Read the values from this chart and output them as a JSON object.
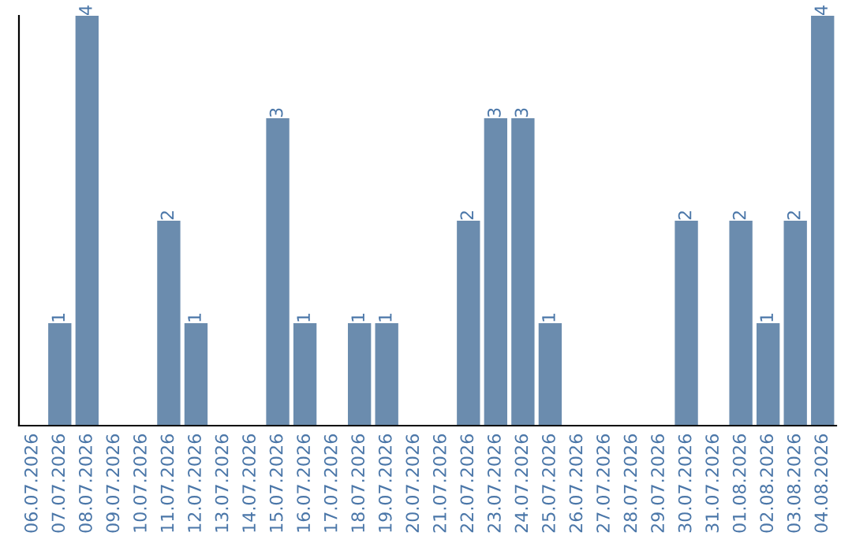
{
  "chart_data": {
    "type": "bar",
    "categories": [
      "06.07.2026",
      "07.07.2026",
      "08.07.2026",
      "09.07.2026",
      "10.07.2026",
      "11.07.2026",
      "12.07.2026",
      "13.07.2026",
      "14.07.2026",
      "15.07.2026",
      "16.07.2026",
      "17.07.2026",
      "18.07.2026",
      "19.07.2026",
      "20.07.2026",
      "21.07.2026",
      "22.07.2026",
      "23.07.2026",
      "24.07.2026",
      "25.07.2026",
      "26.07.2026",
      "27.07.2026",
      "28.07.2026",
      "29.07.2026",
      "30.07.2026",
      "31.07.2026",
      "01.08.2026",
      "02.08.2026",
      "03.08.2026",
      "04.08.2026"
    ],
    "values": [
      0,
      1,
      4,
      0,
      0,
      2,
      1,
      0,
      0,
      3,
      1,
      0,
      1,
      1,
      0,
      0,
      2,
      3,
      3,
      1,
      0,
      0,
      0,
      0,
      2,
      0,
      2,
      1,
      2,
      4
    ],
    "value_labels": [
      null,
      "1",
      "4",
      null,
      null,
      "2",
      "1",
      null,
      null,
      "3",
      "1",
      null,
      "1",
      "1",
      null,
      null,
      "2",
      "3",
      "3",
      "1",
      null,
      null,
      null,
      null,
      "2",
      null,
      "2",
      "1",
      "2",
      "4"
    ],
    "color": "#6b8cae",
    "ylim": [
      0,
      4
    ],
    "tick_labels": "x",
    "grid": false
  }
}
